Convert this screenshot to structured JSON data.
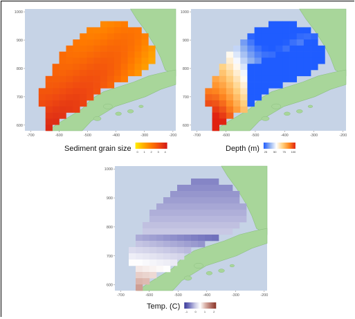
{
  "chart_data": [
    {
      "type": "heatmap",
      "id": "sediment",
      "legend_title": "Sediment grain size",
      "legend_ticks": [
        "0",
        "1",
        "2",
        "3",
        "4"
      ],
      "color_scale": [
        "#ffee00",
        "#ffb000",
        "#ff7a00",
        "#f04a10",
        "#d01818"
      ],
      "x_ticks": [
        "-700",
        "-600",
        "-500",
        "-400",
        "-300",
        "-200"
      ],
      "y_ticks": [
        "600",
        "700",
        "800",
        "900",
        "1000"
      ],
      "xlim": [
        -720,
        -190
      ],
      "ylim": [
        580,
        1010
      ]
    },
    {
      "type": "heatmap",
      "id": "depth",
      "legend_title": "Depth (m)",
      "legend_ticks": [
        "25",
        "50",
        "75",
        "100"
      ],
      "color_scale": [
        "#1f5cff",
        "#8fb0f0",
        "#ffffff",
        "#ffd080",
        "#ff8a20",
        "#e02010"
      ],
      "x_ticks": [
        "-700",
        "-600",
        "-500",
        "-400",
        "-300",
        "-200"
      ],
      "y_ticks": [
        "600",
        "700",
        "800",
        "900",
        "1000"
      ],
      "xlim": [
        -720,
        -190
      ],
      "ylim": [
        580,
        1010
      ]
    },
    {
      "type": "heatmap",
      "id": "temp",
      "legend_title": "Temp. (C)",
      "legend_ticks": [
        "-1",
        "0",
        "1",
        "2"
      ],
      "color_scale": [
        "#3a3a9a",
        "#7878c0",
        "#c8c8e4",
        "#ffffff",
        "#d9b0a6",
        "#b27066",
        "#8a3428"
      ],
      "x_ticks": [
        "-700",
        "-600",
        "-500",
        "-400",
        "-300",
        "-200"
      ],
      "y_ticks": [
        "600",
        "700",
        "800",
        "900",
        "1000"
      ],
      "xlim": [
        -720,
        -190
      ],
      "ylim": [
        580,
        1010
      ]
    }
  ],
  "colors": {
    "sea": "#c6d3e6",
    "land": "#a8d69a",
    "land_edge": "#8cc080",
    "grid": "#d8e2ef"
  }
}
